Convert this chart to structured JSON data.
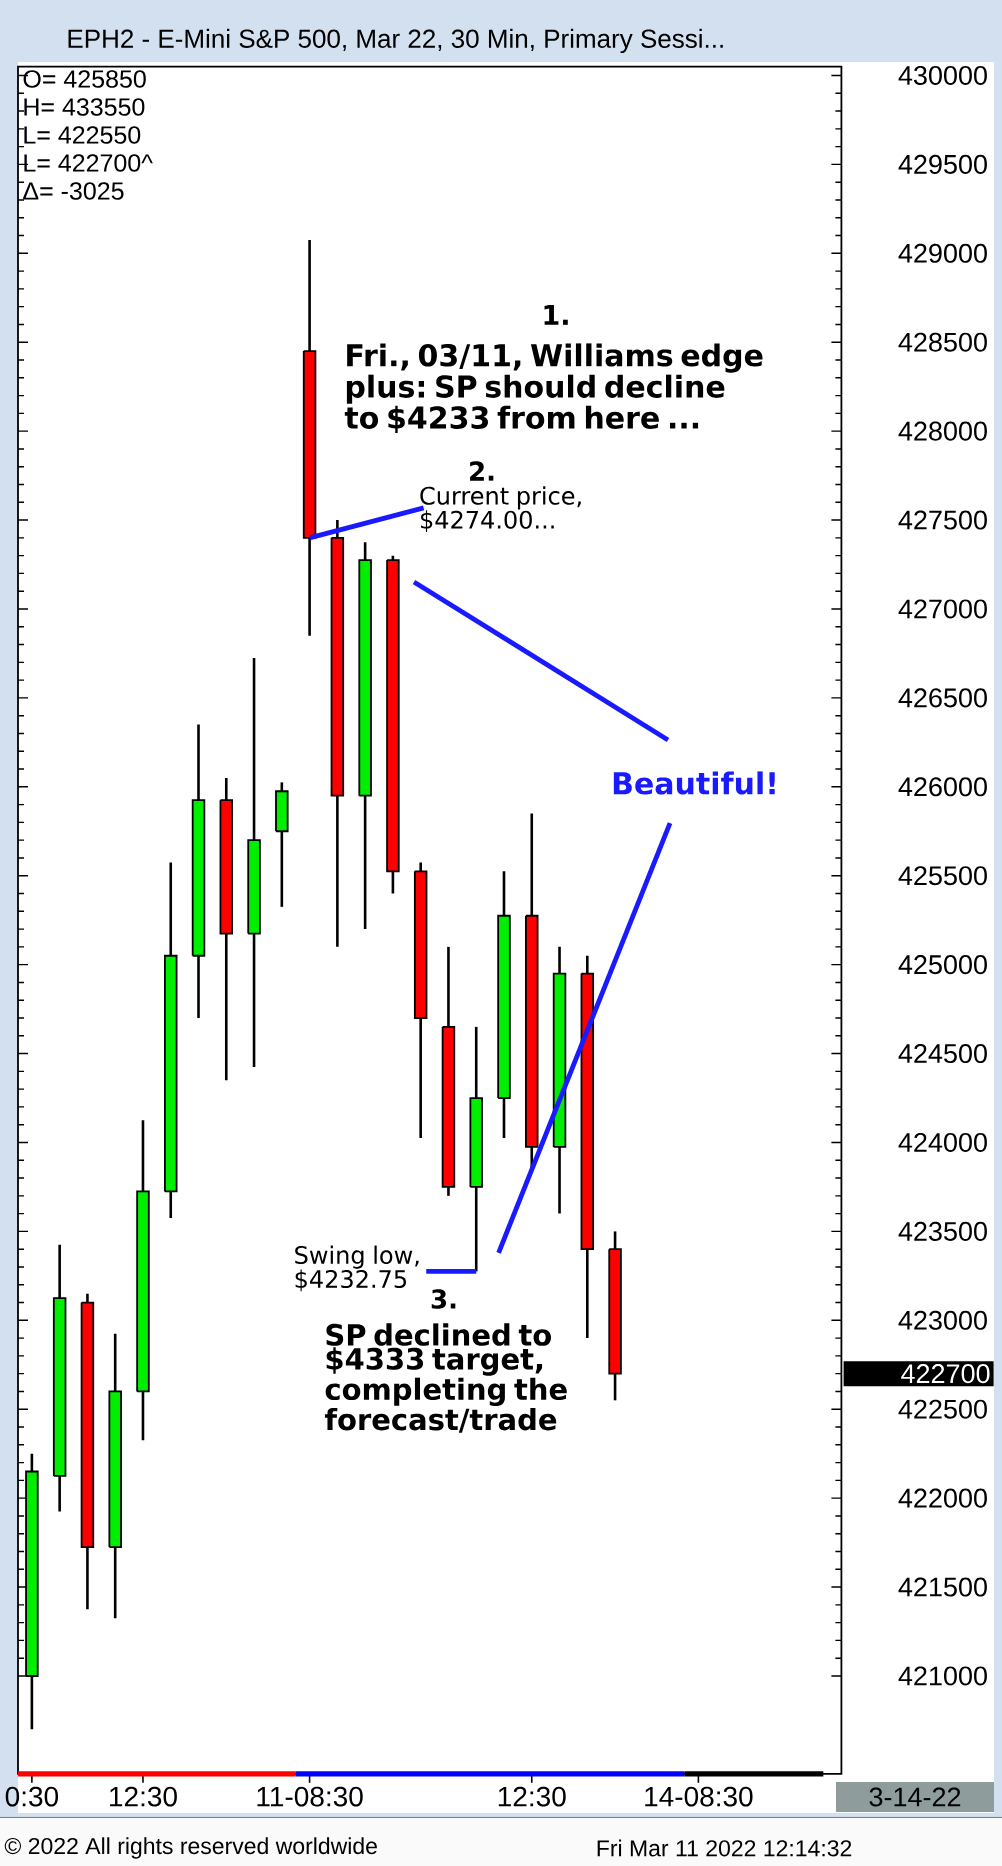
{
  "chart_data": {
    "type": "candlestick",
    "title": "EPH2 - E-Mini S&P 500, Mar 22, 30 Min, Primary Sessi...",
    "categories": [
      "0:30",
      null,
      null,
      null,
      "12:30",
      null,
      null,
      null,
      null,
      null,
      "11-08:30",
      null,
      null,
      null,
      null,
      null,
      null,
      null,
      "12:30",
      null,
      null,
      null,
      null,
      null,
      "14-08:30",
      null,
      null,
      null,
      null,
      null
    ],
    "ohlc": [
      [
        421000,
        422250,
        420700,
        422150
      ],
      [
        422125,
        423425,
        421925,
        423125
      ],
      [
        423100,
        423150,
        421375,
        421725
      ],
      [
        421725,
        422925,
        421325,
        422600
      ],
      [
        422600,
        424125,
        422325,
        423725
      ],
      [
        423725,
        425575,
        423575,
        425050
      ],
      [
        425050,
        426350,
        424700,
        425925
      ],
      [
        425925,
        426050,
        424350,
        425175
      ],
      [
        425175,
        426725,
        424425,
        425700
      ],
      [
        425750,
        426025,
        425325,
        425975
      ],
      [
        428450,
        429075,
        426850,
        427400
      ],
      [
        427400,
        427500,
        425100,
        425950
      ],
      [
        425950,
        427375,
        425200,
        427275
      ],
      [
        427275,
        427300,
        425400,
        425525
      ],
      [
        425525,
        425575,
        424025,
        424700
      ],
      [
        424650,
        425100,
        423700,
        423750
      ],
      [
        423750,
        424650,
        423275,
        424250
      ],
      [
        424250,
        425525,
        424025,
        425275
      ],
      [
        425275,
        425850,
        423850,
        423975
      ],
      [
        423975,
        425100,
        423600,
        424950
      ],
      [
        424950,
        425050,
        422900,
        423400
      ],
      [
        423400,
        423500,
        422550,
        422700
      ],
      null,
      null,
      null,
      null,
      null,
      null,
      null,
      null
    ],
    "colors": [
      "#00ee00",
      "#00ee00",
      "#ff0000",
      "#00ee00",
      "#00ee00",
      "#00ee00",
      "#00ee00",
      "#ff0000",
      "#00ee00",
      "#00ee00",
      "#ff0000",
      "#ff0000",
      "#00ee00",
      "#ff0000",
      "#ff0000",
      "#ff0000",
      "#00ee00",
      "#00ee00",
      "#ff0000",
      "#00ee00",
      "#ff0000",
      "#ff0000",
      null,
      null,
      null,
      null,
      null,
      null,
      null,
      null
    ],
    "ylim": [
      420450,
      430050
    ],
    "yticks": [
      421000,
      421500,
      422000,
      422500,
      423000,
      423500,
      424000,
      424500,
      425000,
      425500,
      426000,
      426500,
      427000,
      427500,
      428000,
      428500,
      429000,
      429500,
      430000
    ],
    "ref_lines": [
      {
        "axis": "y",
        "value": 423275,
        "label": "Swing low, $4232.75",
        "color": "#1a1aff"
      }
    ],
    "annotations": [
      "O= 425850",
      "H= 433550",
      "L= 422550",
      "L= 422700^",
      "Δ= -3025",
      "1.",
      "Fri., 03/11, Williams edge plus: SP should decline to $4233 from here ...",
      "2.",
      {
        "text": "Current price, $4274.00...",
        "x": "11-08:30",
        "y": 427400
      },
      "Beautiful!",
      "3.",
      "SP declined to $4333 target, completing the forecast/trade",
      "422700",
      "3-14-22",
      "© 2022 All rights reserved worldwide",
      "Fri Mar 11 2022 12:14:32"
    ]
  }
}
